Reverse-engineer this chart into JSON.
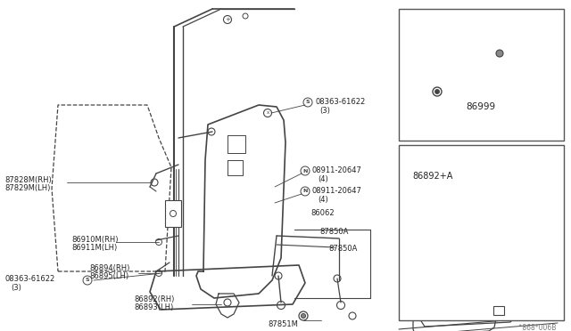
{
  "bg_color": "#ffffff",
  "line_color": "#444444",
  "text_color": "#222222",
  "fig_width": 6.4,
  "fig_height": 3.72,
  "dpi": 100,
  "watermark": "^868*006B",
  "labels": {
    "87828M_RH": "87828M(RH)",
    "87829M_LH": "87829M(LH)",
    "08363_top_label": "08363-61622",
    "08363_top_sub": "(3)",
    "08363_left_label": "08363-61622",
    "08363_left_sub": "(3)",
    "08911_top_label": "08911-20647",
    "08911_top_sub": "(4)",
    "08911_bot_label": "08911-20647",
    "08911_bot_sub": "(4)",
    "86910M_RH": "86910M(RH)",
    "86911M_LH": "86911M(LH)",
    "86062": "86062",
    "87850A_1": "87850A",
    "87850A_2": "87850A",
    "87851M": "87851M",
    "86894_RH": "86894(RH)",
    "86895_LH": "86895(LH)",
    "86892_RH": "86892(RH)",
    "86893_LH": "86893(LH)",
    "86999": "86999",
    "86892A": "86892+A"
  }
}
